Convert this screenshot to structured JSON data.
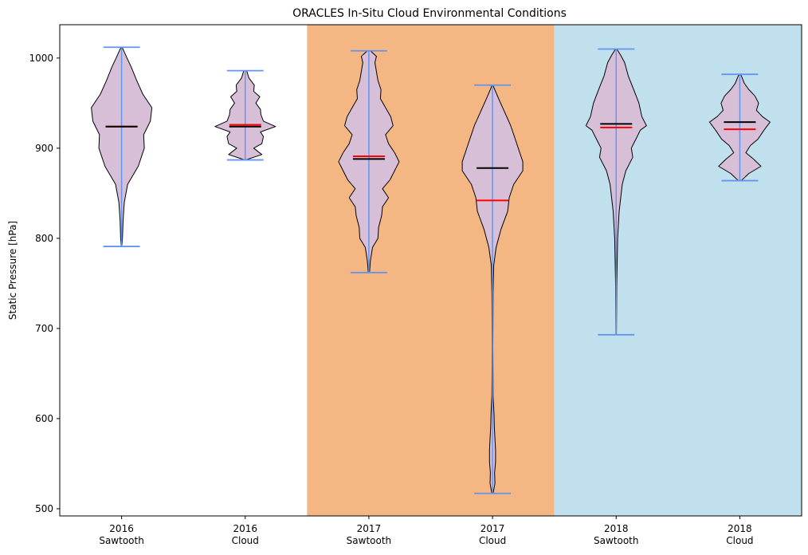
{
  "chart_data": {
    "type": "violin",
    "title": "ORACLES In-Situ Cloud Environmental Conditions",
    "xlabel": "",
    "ylabel": "Static Pressure [hPa]",
    "ylim": [
      492,
      1037
    ],
    "yticks": [
      500,
      600,
      700,
      800,
      900,
      1000
    ],
    "grid": false,
    "categories": [
      {
        "line1": "2016",
        "line2": "Sawtooth"
      },
      {
        "line1": "2016",
        "line2": "Cloud"
      },
      {
        "line1": "2017",
        "line2": "Sawtooth"
      },
      {
        "line1": "2017",
        "line2": "Cloud"
      },
      {
        "line1": "2018",
        "line2": "Sawtooth"
      },
      {
        "line1": "2018",
        "line2": "Cloud"
      }
    ],
    "background_bands": [
      {
        "from_index": 2,
        "to_index": 3,
        "color": "#f4b683"
      },
      {
        "from_index": 4,
        "to_index": 5,
        "color": "#bfe0ec"
      }
    ],
    "colors": {
      "violin_fill": "#d8bfd8",
      "violin_edge": "#000000",
      "whisker": "#6495ed",
      "median": "#000000",
      "mean": "#ff0000"
    },
    "violins": [
      {
        "min": 791,
        "max": 1012,
        "median": 924,
        "mean": 924,
        "profile": [
          [
            791,
            0.01
          ],
          [
            800,
            0.03
          ],
          [
            820,
            0.05
          ],
          [
            840,
            0.09
          ],
          [
            860,
            0.2
          ],
          [
            880,
            0.55
          ],
          [
            900,
            0.75
          ],
          [
            915,
            0.73
          ],
          [
            930,
            0.95
          ],
          [
            945,
            1.0
          ],
          [
            960,
            0.7
          ],
          [
            975,
            0.5
          ],
          [
            990,
            0.32
          ],
          [
            1000,
            0.18
          ],
          [
            1012,
            0.02
          ]
        ]
      },
      {
        "min": 887,
        "max": 986,
        "median": 924,
        "mean": 926,
        "profile": [
          [
            887,
            0.02
          ],
          [
            893,
            0.55
          ],
          [
            900,
            0.28
          ],
          [
            905,
            0.55
          ],
          [
            913,
            0.6
          ],
          [
            918,
            0.5
          ],
          [
            924,
            1.0
          ],
          [
            930,
            0.6
          ],
          [
            937,
            0.52
          ],
          [
            943,
            0.5
          ],
          [
            950,
            0.35
          ],
          [
            957,
            0.48
          ],
          [
            963,
            0.28
          ],
          [
            970,
            0.3
          ],
          [
            978,
            0.12
          ],
          [
            986,
            0.05
          ]
        ]
      },
      {
        "min": 762,
        "max": 1008,
        "median": 888,
        "mean": 891,
        "profile": [
          [
            762,
            0.02
          ],
          [
            775,
            0.05
          ],
          [
            790,
            0.12
          ],
          [
            800,
            0.3
          ],
          [
            812,
            0.32
          ],
          [
            825,
            0.42
          ],
          [
            835,
            0.45
          ],
          [
            845,
            0.65
          ],
          [
            855,
            0.45
          ],
          [
            865,
            0.7
          ],
          [
            875,
            0.85
          ],
          [
            885,
            1.0
          ],
          [
            895,
            0.85
          ],
          [
            905,
            0.65
          ],
          [
            915,
            0.55
          ],
          [
            925,
            0.8
          ],
          [
            935,
            0.72
          ],
          [
            945,
            0.55
          ],
          [
            955,
            0.38
          ],
          [
            965,
            0.4
          ],
          [
            975,
            0.3
          ],
          [
            985,
            0.25
          ],
          [
            995,
            0.2
          ],
          [
            1002,
            0.25
          ],
          [
            1008,
            0.05
          ]
        ]
      },
      {
        "min": 517,
        "max": 970,
        "median": 878,
        "mean": 842,
        "profile": [
          [
            517,
            0.02
          ],
          [
            528,
            0.08
          ],
          [
            540,
            0.07
          ],
          [
            552,
            0.1
          ],
          [
            565,
            0.1
          ],
          [
            578,
            0.08
          ],
          [
            590,
            0.06
          ],
          [
            605,
            0.05
          ],
          [
            625,
            0.02
          ],
          [
            680,
            0.01
          ],
          [
            740,
            0.02
          ],
          [
            770,
            0.04
          ],
          [
            790,
            0.12
          ],
          [
            810,
            0.28
          ],
          [
            830,
            0.5
          ],
          [
            845,
            0.55
          ],
          [
            860,
            0.7
          ],
          [
            875,
            1.0
          ],
          [
            885,
            1.0
          ],
          [
            895,
            0.9
          ],
          [
            910,
            0.75
          ],
          [
            925,
            0.6
          ],
          [
            940,
            0.4
          ],
          [
            955,
            0.2
          ],
          [
            970,
            0.01
          ]
        ]
      },
      {
        "min": 693,
        "max": 1010,
        "median": 927,
        "mean": 923,
        "profile": [
          [
            693,
            0.01
          ],
          [
            750,
            0.02
          ],
          [
            800,
            0.05
          ],
          [
            830,
            0.1
          ],
          [
            860,
            0.2
          ],
          [
            875,
            0.32
          ],
          [
            890,
            0.55
          ],
          [
            900,
            0.5
          ],
          [
            910,
            0.65
          ],
          [
            920,
            0.8
          ],
          [
            925,
            1.0
          ],
          [
            935,
            0.85
          ],
          [
            950,
            0.75
          ],
          [
            965,
            0.58
          ],
          [
            980,
            0.4
          ],
          [
            995,
            0.28
          ],
          [
            1003,
            0.15
          ],
          [
            1010,
            0.02
          ]
        ]
      },
      {
        "min": 864,
        "max": 982,
        "median": 929,
        "mean": 921,
        "profile": [
          [
            864,
            0.05
          ],
          [
            872,
            0.3
          ],
          [
            880,
            0.7
          ],
          [
            888,
            0.45
          ],
          [
            895,
            0.2
          ],
          [
            903,
            0.35
          ],
          [
            910,
            0.6
          ],
          [
            920,
            0.8
          ],
          [
            929,
            1.0
          ],
          [
            935,
            0.75
          ],
          [
            942,
            0.55
          ],
          [
            950,
            0.62
          ],
          [
            958,
            0.5
          ],
          [
            965,
            0.3
          ],
          [
            972,
            0.15
          ],
          [
            982,
            0.03
          ]
        ]
      }
    ]
  }
}
